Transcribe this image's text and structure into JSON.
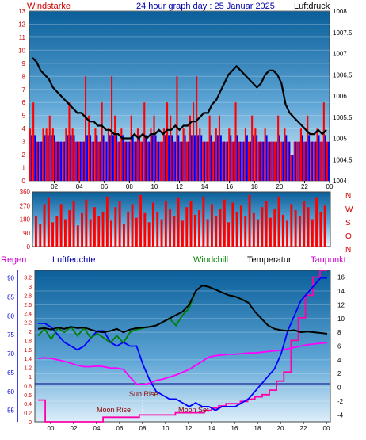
{
  "header": {
    "left_label": "Windstarke",
    "title": "24 hour graph day : 25 Januar 2025",
    "right_label": "Luftdruck"
  },
  "legend": {
    "regen": "Regen",
    "luftfeuchte": "Luftfeuchte",
    "windchill": "Windchill",
    "temperatur": "Temperatur",
    "taupunkt": "Taupunkt"
  },
  "annotations": {
    "moon_rise": "Moon Rise",
    "sun_rise": "Sun Rise",
    "moon_set": "Moon Set"
  },
  "colors": {
    "wind_red": "#ff0000",
    "wind_blue": "#0000ff",
    "pressure": "#000000",
    "humidity": "#0000ff",
    "windchill": "#008000",
    "temperature": "#000000",
    "dewpoint": "#ff00ff",
    "rain": "#ff00aa",
    "left_axis_red": "#cc0000",
    "regen_axis": "#0000cc"
  },
  "chart_data": [
    {
      "type": "bar",
      "ylabel_left": "Windstarke",
      "ylabel_right": "Luftdruck",
      "x_tick_labels": [
        "02",
        "04",
        "06",
        "08",
        "10",
        "12",
        "14",
        "16",
        "18",
        "20",
        "22",
        "00"
      ],
      "left_ticks": [
        "0",
        "1",
        "2",
        "3",
        "4",
        "5",
        "6",
        "7",
        "8",
        "9",
        "10",
        "11",
        "12",
        "13"
      ],
      "right_ticks": [
        "1004",
        "1004.5",
        "1005",
        "1005.5",
        "1006",
        "1006.5",
        "1007",
        "1007.5",
        "1008"
      ],
      "ylim_left": [
        0,
        13
      ],
      "ylim_right": [
        1004,
        1008
      ],
      "series": [
        {
          "name": "Windstarke",
          "kind": "bar",
          "color": "#ff0000",
          "y": [
            4,
            6,
            3,
            3,
            4,
            4,
            5,
            4,
            3,
            3,
            3,
            4,
            6,
            4,
            3,
            3,
            3,
            8,
            5,
            3,
            4,
            3,
            6,
            3,
            4,
            8,
            5,
            3,
            4,
            3,
            3,
            5,
            3,
            4,
            3,
            6,
            3,
            4,
            5,
            3,
            3,
            4,
            6,
            5,
            3,
            8,
            3,
            4,
            3,
            5,
            6,
            8,
            4,
            3,
            3,
            5,
            3,
            4,
            5,
            3,
            3,
            4,
            3,
            6,
            3,
            3,
            4,
            3,
            5,
            4,
            3,
            3,
            4,
            3,
            3,
            3,
            5,
            3,
            4,
            3,
            2,
            3,
            3,
            4,
            3,
            5,
            3,
            3,
            4,
            3,
            6,
            3
          ]
        },
        {
          "name": "Luftdruck",
          "kind": "line",
          "color": "#000000",
          "y": [
            1006.9,
            1006.8,
            1006.6,
            1006.5,
            1006.4,
            1006.2,
            1006.1,
            1006.0,
            1005.9,
            1005.8,
            1005.7,
            1005.6,
            1005.6,
            1005.5,
            1005.4,
            1005.4,
            1005.3,
            1005.3,
            1005.2,
            1005.2,
            1005.1,
            1005.1,
            1005.0,
            1005.0,
            1005.0,
            1005.1,
            1005.0,
            1005.1,
            1005.0,
            1005.1,
            1005.1,
            1005.2,
            1005.1,
            1005.2,
            1005.2,
            1005.3,
            1005.2,
            1005.3,
            1005.3,
            1005.4,
            1005.4,
            1005.5,
            1005.6,
            1005.6,
            1005.8,
            1005.9,
            1006.1,
            1006.3,
            1006.5,
            1006.6,
            1006.7,
            1006.6,
            1006.5,
            1006.4,
            1006.3,
            1006.2,
            1006.3,
            1006.5,
            1006.6,
            1006.6,
            1006.5,
            1006.3,
            1005.8,
            1005.6,
            1005.5,
            1005.4,
            1005.3,
            1005.2,
            1005.1,
            1005.1,
            1005.2,
            1005.1,
            1005.2
          ]
        }
      ]
    },
    {
      "type": "bar",
      "ylabel_right": "N W S O N",
      "left_ticks": [
        "0",
        "90",
        "180",
        "270",
        "360"
      ],
      "ylim": [
        0,
        360
      ],
      "series": [
        {
          "name": "Windrichtung",
          "kind": "bar",
          "color": "#ff0000",
          "y": [
            200,
            150,
            280,
            320,
            160,
            200,
            280,
            180,
            240,
            300,
            140,
            220,
            310,
            180,
            260,
            200,
            230,
            330,
            170,
            260,
            300,
            150,
            230,
            280,
            190,
            340,
            220,
            160,
            290,
            230,
            180,
            300,
            250,
            200,
            320,
            170,
            260,
            300,
            210,
            240,
            330,
            180,
            280,
            200,
            250,
            310,
            160,
            290,
            230,
            270,
            200,
            340,
            220,
            180,
            260,
            300,
            190,
            250,
            330,
            210,
            170,
            280,
            240,
            200,
            300,
            260,
            180,
            320,
            230,
            270
          ]
        }
      ]
    },
    {
      "type": "line",
      "legend": [
        "Regen",
        "Luftfeuchte",
        "Windchill",
        "Temperatur",
        "Taupunkt"
      ],
      "x_tick_labels": [
        "00",
        "02",
        "04",
        "06",
        "08",
        "10",
        "12",
        "14",
        "16",
        "18",
        "20",
        "22",
        "00"
      ],
      "regen_ticks": [
        "0",
        "0.2",
        "0.4",
        "0.6",
        "0.8",
        "1",
        "1.2",
        "1.4",
        "1.6",
        "1.8",
        "2",
        "2.2",
        "2.4",
        "2.6",
        "2.8",
        "3",
        "3.2"
      ],
      "humidity_ticks": [
        "55",
        "60",
        "65",
        "70",
        "75",
        "80",
        "85",
        "90"
      ],
      "temp_ticks": [
        "-4",
        "-2",
        "0",
        "2",
        "4",
        "6",
        "8",
        "10",
        "12",
        "14",
        "16"
      ],
      "ylim_temp": [
        -5,
        17
      ],
      "ylim_humidity": [
        52,
        92
      ],
      "ylim_regen": [
        0,
        3.35
      ],
      "series": [
        {
          "name": "Luftfeuchte",
          "axis": "humidity",
          "color": "#0000ff",
          "y": [
            78,
            78,
            77,
            75,
            73,
            72,
            71,
            72,
            74,
            76,
            76,
            73,
            72,
            73,
            72,
            72,
            67,
            63,
            60,
            59,
            58,
            58,
            57,
            56,
            57,
            56,
            56,
            55,
            56,
            56,
            56,
            57,
            58,
            60,
            62,
            64,
            66,
            70,
            76,
            80,
            84,
            86,
            88,
            90,
            90
          ]
        },
        {
          "name": "Temperatur",
          "axis": "temp",
          "color": "#000000",
          "y": [
            8.5,
            8.6,
            8.4,
            8.7,
            8.5,
            8.8,
            8.6,
            8.7,
            8.4,
            8.1,
            8.0,
            8.2,
            8.5,
            8.0,
            8.4,
            8.6,
            8.7,
            8.8,
            9.0,
            9.5,
            10.0,
            10.5,
            11.0,
            12.0,
            14.0,
            14.8,
            14.6,
            14.2,
            13.8,
            13.4,
            13.2,
            12.8,
            12.3,
            11.0,
            10.0,
            9.0,
            8.5,
            8.3,
            8.2,
            8.3,
            8.0,
            8.1,
            8.0,
            7.9,
            7.8
          ]
        },
        {
          "name": "Windchill",
          "axis": "temp",
          "color": "#008000",
          "y": [
            7.5,
            8.5,
            7.0,
            8.6,
            8.0,
            8.8,
            7.5,
            8.6,
            7.2,
            7.8,
            7.2,
            6.5,
            7.5,
            6.5,
            8.0,
            8.4,
            8.6,
            8.8,
            9.0,
            9.5,
            10.0,
            9.0,
            10.5,
            11.5,
            14.0,
            14.8,
            14.6,
            14.2,
            13.8,
            13.4,
            13.2,
            12.8,
            12.3,
            11.0,
            10.0,
            9.0,
            8.5,
            8.3,
            8.2,
            8.3,
            8.0,
            8.1,
            8.0,
            7.9,
            7.8
          ]
        },
        {
          "name": "Taupunkt",
          "axis": "temp",
          "color": "#ff00ff",
          "y": [
            4.2,
            4.3,
            4.2,
            4.0,
            3.8,
            3.5,
            3.2,
            3.0,
            3.0,
            3.1,
            3.0,
            2.8,
            2.8,
            2.6,
            1.5,
            0.5,
            0.4,
            0.6,
            1.0,
            1.2,
            1.5,
            1.8,
            2.2,
            2.6,
            3.2,
            3.8,
            4.4,
            4.6,
            4.7,
            4.8,
            4.8,
            4.9,
            5.0,
            5.0,
            5.1,
            5.2,
            5.3,
            5.4,
            5.6,
            5.8,
            6.0,
            6.2,
            6.3,
            6.4,
            6.5
          ]
        },
        {
          "name": "Regen",
          "axis": "regen",
          "color": "#ff00aa",
          "y": [
            0.48,
            0,
            0,
            0,
            0,
            0,
            0,
            0,
            0,
            0.1,
            0.1,
            0.1,
            0.1,
            0.1,
            0.15,
            0.15,
            0.15,
            0.15,
            0.15,
            0.2,
            0.2,
            0.2,
            0.2,
            0.25,
            0.3,
            0.35,
            0.4,
            0.4,
            0.45,
            0.5,
            0.55,
            0.6,
            0.7,
            0.9,
            1.1,
            1.8,
            2.3,
            2.8,
            3.2,
            3.35,
            3.35
          ]
        }
      ]
    }
  ]
}
